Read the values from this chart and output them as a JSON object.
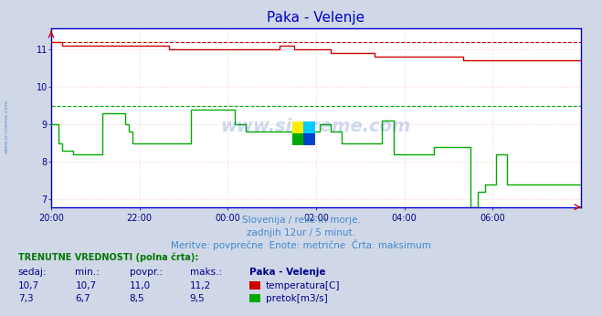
{
  "title": "Paka - Velenje",
  "title_color": "#0000cc",
  "background_color": "#d0d8e8",
  "plot_bg_color": "#ffffff",
  "grid_color_h": "#ffcccc",
  "grid_color_v": "#ffcccc",
  "x_labels": [
    "20:00",
    "22:00",
    "00:00",
    "02:00",
    "04:00",
    "06:00"
  ],
  "x_ticks_idx": [
    0,
    24,
    48,
    72,
    96,
    120
  ],
  "total_points": 145,
  "y_min": 6.8,
  "y_max": 11.55,
  "y_ticks": [
    7,
    8,
    9,
    10,
    11
  ],
  "temp_max": 11.2,
  "flow_max": 9.5,
  "temp_color": "#cc0000",
  "flow_color": "#00aa00",
  "sidebar_text_color": "#4488cc",
  "subtitle_color": "#4488cc",
  "subtitle1": "Slovenija / reke in morje.",
  "subtitle2": "zadnjih 12ur / 5 minut.",
  "subtitle3": "Meritve: povprečne  Enote: metrične  Črta: maksimum",
  "table_header": "TRENUTNE VREDNOSTI (polna črta):",
  "col_headers": [
    "sedaj:",
    "min.:",
    "povpr.:",
    "maks.:",
    "Paka - Velenje"
  ],
  "row1": [
    "10,7",
    "10,7",
    "11,0",
    "11,2"
  ],
  "row2": [
    "7,3",
    "6,7",
    "8,5",
    "9,5"
  ],
  "legend1": "temperatura[C]",
  "legend2": "pretok[m3/s]",
  "axis_label_color": "#000080",
  "spine_color": "#0000cc",
  "watermark_text": "www.si-vreme.com",
  "watermark_color": "#2255bb",
  "logo_colors": [
    [
      "#ffee00",
      "#00ccff"
    ],
    [
      "#00aa00",
      "#0044cc"
    ]
  ]
}
